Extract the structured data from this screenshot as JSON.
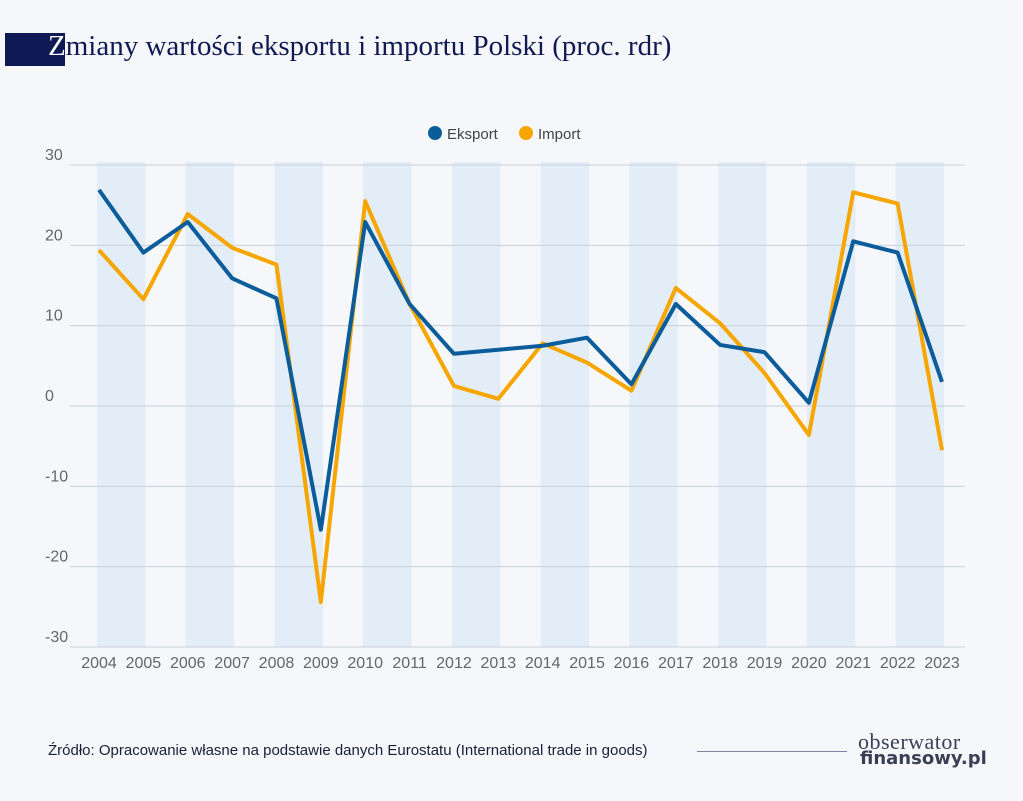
{
  "title_first_letter": "Z",
  "title_rest": "miany wartości eksportu i importu Polski (proc. rdr)",
  "source": "Źródło: Opracowanie własne na podstawie danych Eurostatu (International trade in goods)",
  "logo": {
    "line1": "obserwator",
    "line2": "finansowy.pl"
  },
  "chart_data": {
    "type": "line",
    "title": "Zmiany wartości eksportu i importu Polski (proc. rdr)",
    "legend_position": "top-center",
    "grid": true,
    "ylim": [
      -30,
      30
    ],
    "yticks": [
      30,
      20,
      10,
      0,
      -10,
      -20,
      -30
    ],
    "x": [
      "2004",
      "2005",
      "2006",
      "2007",
      "2008",
      "2009",
      "2010",
      "2011",
      "2012",
      "2013",
      "2014",
      "2015",
      "2016",
      "2017",
      "2018",
      "2019",
      "2020",
      "2021",
      "2022",
      "2023"
    ],
    "series": [
      {
        "name": "Eksport",
        "color": "#0b5c9a",
        "values": [
          26.9,
          19.1,
          22.9,
          15.9,
          13.4,
          -15.4,
          22.9,
          12.7,
          6.5,
          7.0,
          7.5,
          8.5,
          2.7,
          12.7,
          7.6,
          6.7,
          0.4,
          20.5,
          19.1,
          3.0
        ]
      },
      {
        "name": "Import",
        "color": "#f7a600",
        "values": [
          19.4,
          13.3,
          23.9,
          19.7,
          17.6,
          -24.4,
          25.5,
          12.7,
          2.5,
          0.9,
          7.8,
          5.4,
          1.9,
          14.7,
          10.3,
          4.1,
          -3.6,
          26.6,
          25.2,
          -5.5
        ]
      }
    ],
    "band_color": "#e2edf8"
  }
}
